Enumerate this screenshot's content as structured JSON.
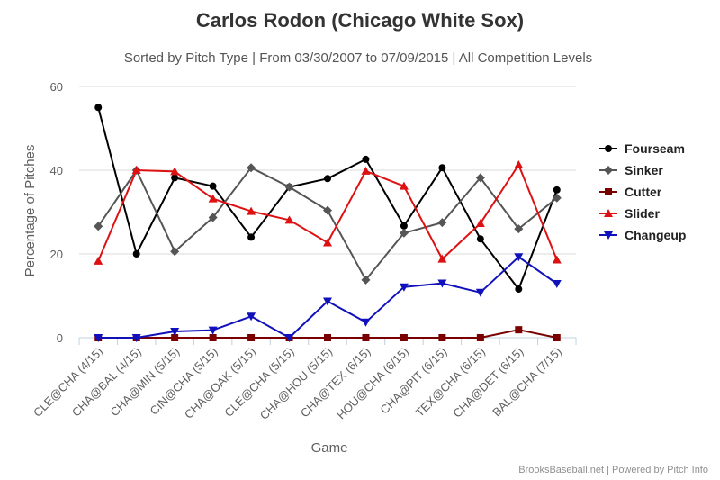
{
  "chart_data": {
    "type": "line",
    "title": "Carlos Rodon (Chicago White Sox)",
    "subtitle": "Sorted by Pitch Type | From 03/30/2007 to 07/09/2015 | All Competition Levels",
    "xlabel": "Game",
    "ylabel": "Percentage of Pitches",
    "ylim": [
      0,
      60
    ],
    "yticks": [
      "0",
      "20",
      "40",
      "60"
    ],
    "grid": "horizontal",
    "legend_position": "right",
    "categories": [
      "CLE@CHA (4/15)",
      "CHA@BAL (4/15)",
      "CHA@MIN (5/15)",
      "CIN@CHA (5/15)",
      "CHA@OAK (5/15)",
      "CLE@CHA (5/15)",
      "CHA@HOU (5/15)",
      "CHA@TEX (6/15)",
      "HOU@CHA (6/15)",
      "CHA@PIT (6/15)",
      "TEX@CHA (6/15)",
      "CHA@DET (6/15)",
      "BAL@CHA (7/15)"
    ],
    "series": [
      {
        "name": "Fourseam",
        "color": "#000000",
        "marker": "circle",
        "values": [
          55,
          20,
          38.2,
          36.2,
          24,
          36,
          38,
          42.6,
          26.7,
          40.6,
          23.6,
          11.6,
          35.3
        ]
      },
      {
        "name": "Sinker",
        "color": "#555555",
        "marker": "diamond",
        "values": [
          26.6,
          40,
          20.6,
          28.7,
          40.6,
          36,
          30.4,
          13.8,
          25,
          27.5,
          38.2,
          26,
          33.4
        ]
      },
      {
        "name": "Cutter",
        "color": "#7a0000",
        "marker": "square",
        "values": [
          0,
          0,
          0,
          0,
          0,
          0,
          0,
          0,
          0,
          0,
          0,
          1.9,
          0
        ]
      },
      {
        "name": "Slider",
        "color": "#dd1111",
        "marker": "triangle",
        "values": [
          18.3,
          40,
          39.7,
          33.2,
          30.2,
          28.1,
          22.7,
          39.8,
          36.2,
          18.8,
          27.3,
          41.3,
          18.6
        ]
      },
      {
        "name": "Changeup",
        "color": "#1111bb",
        "marker": "triangle-down",
        "values": [
          0,
          0,
          1.5,
          1.8,
          5.1,
          0,
          8.7,
          3.7,
          12.1,
          13,
          10.8,
          19.3,
          12.9
        ]
      }
    ]
  },
  "credits": "BrooksBaseball.net | Powered by Pitch Info"
}
